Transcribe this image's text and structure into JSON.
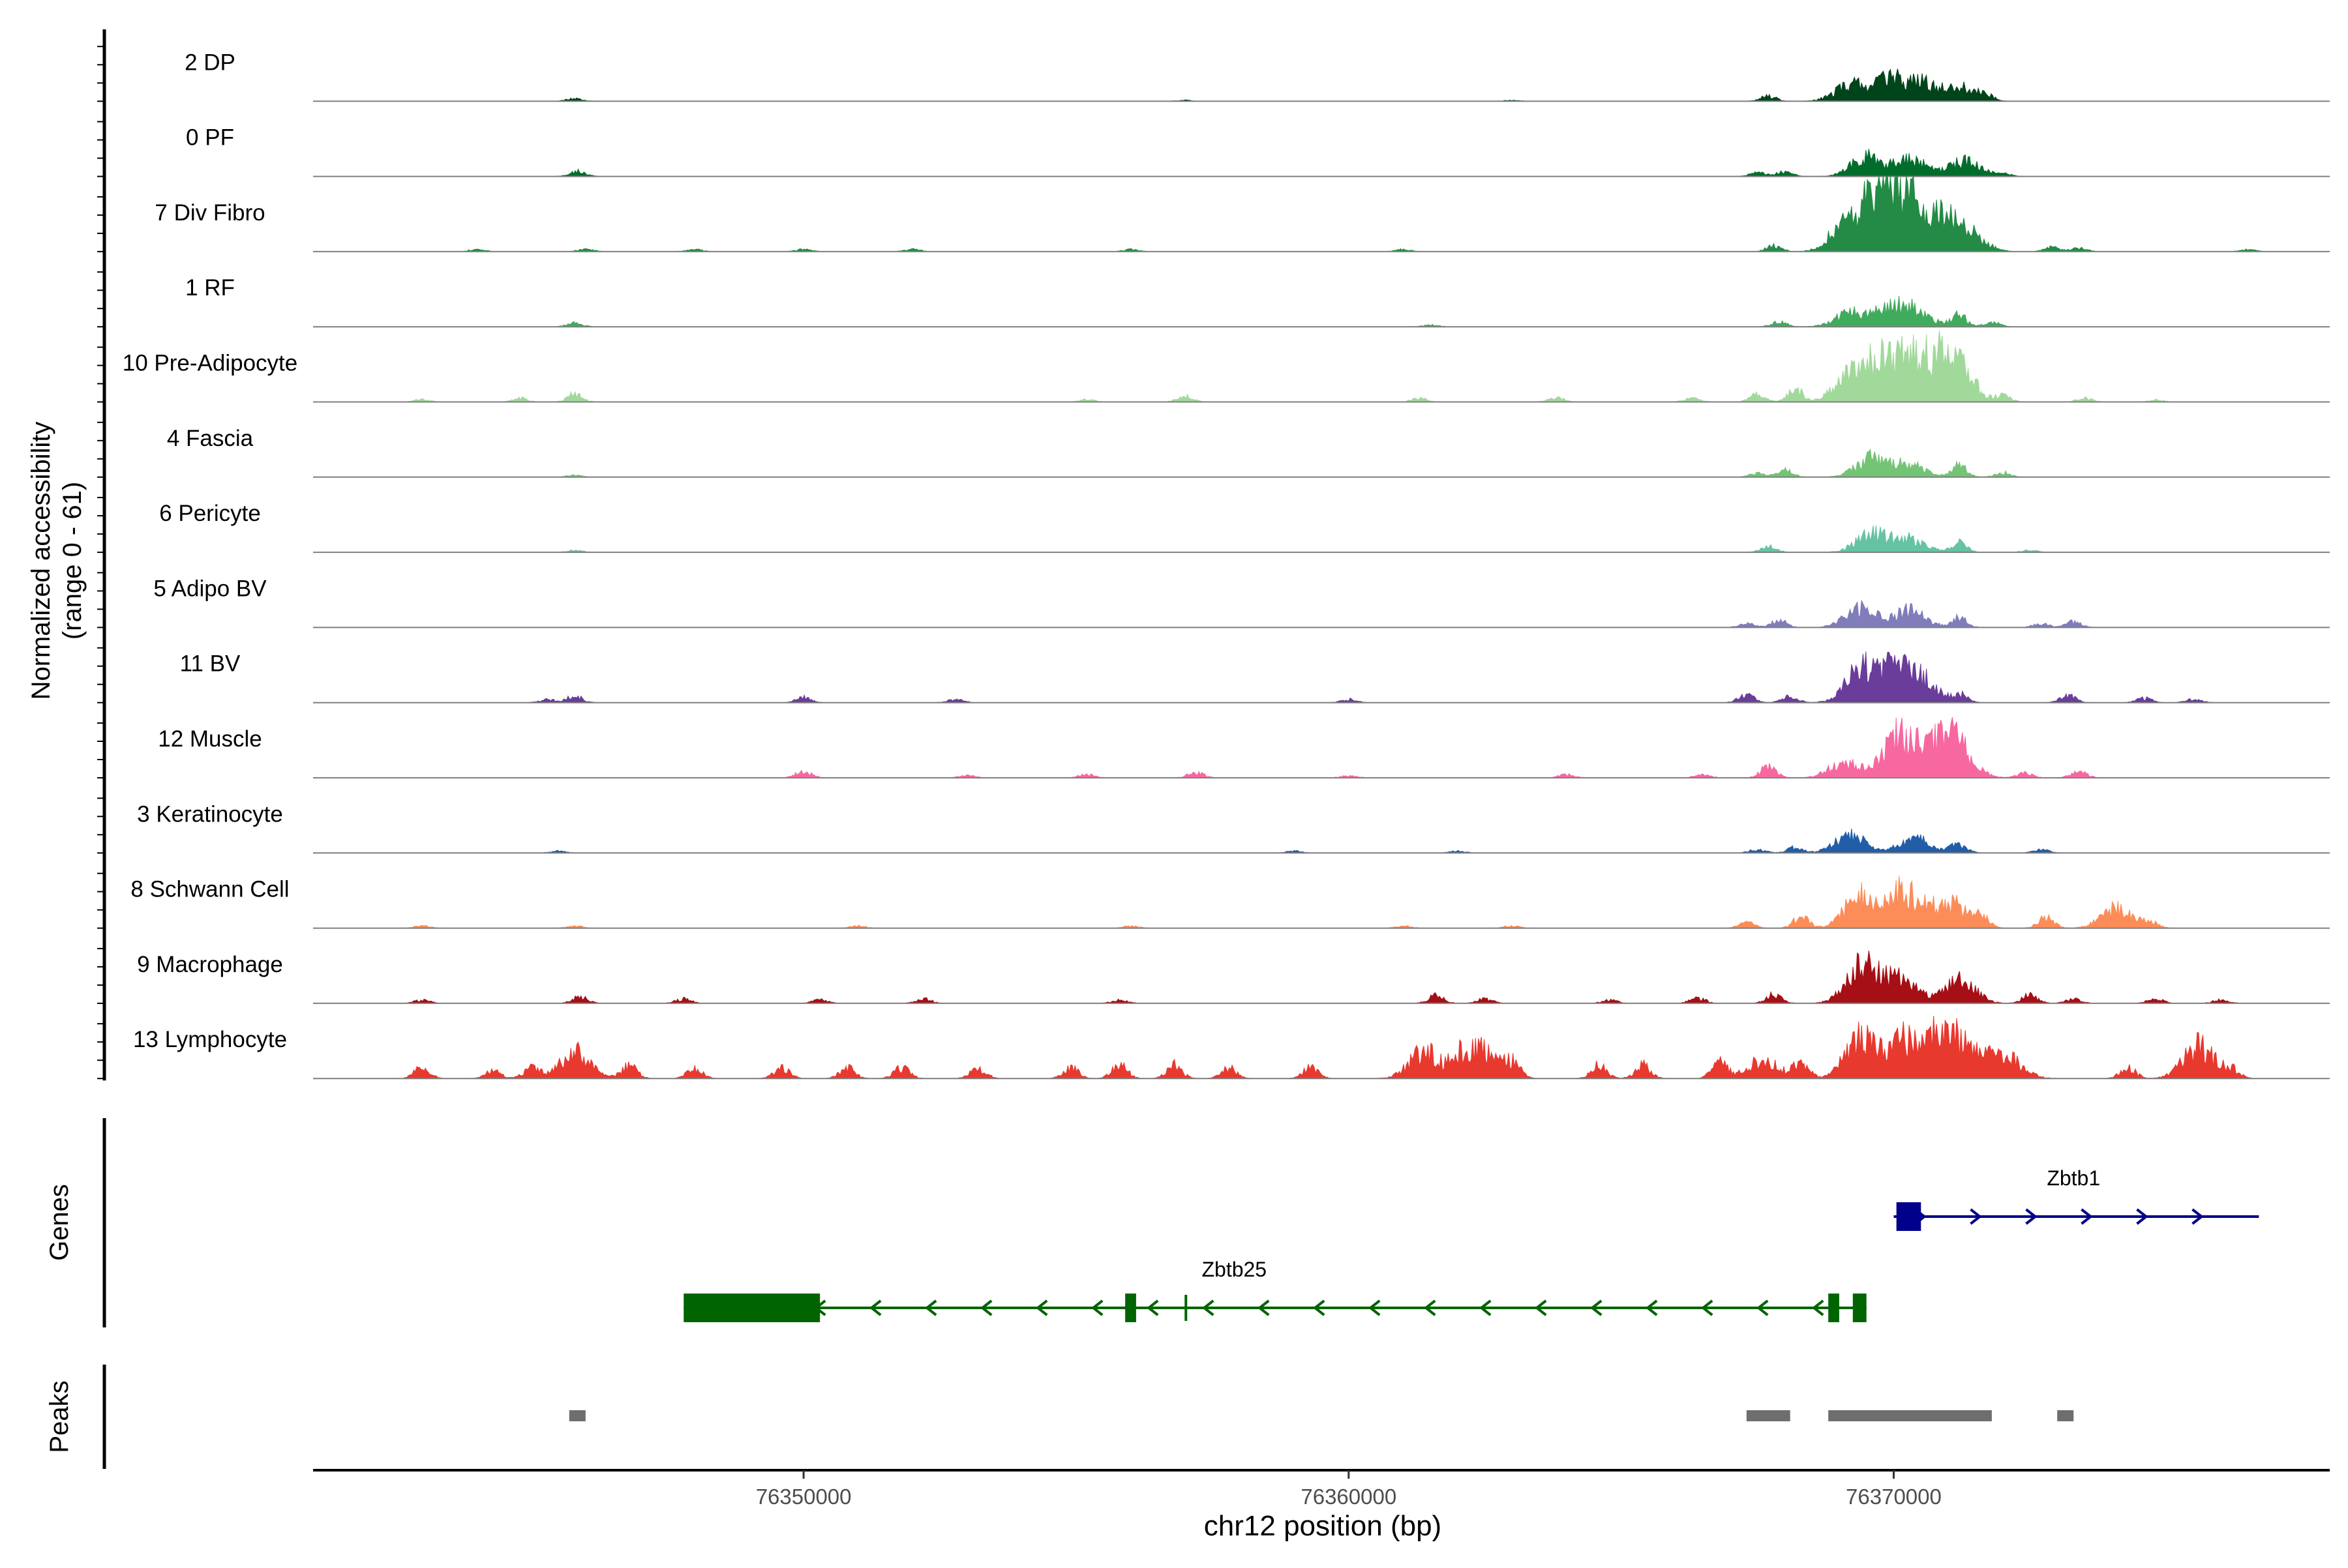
{
  "chart_data": {
    "type": "area",
    "title": "",
    "chromosome": "chr12",
    "xlabel": "chr12 position (bp)",
    "ylabel_line1": "Normalized accessibility",
    "ylabel_line2": "(range 0 - 61)",
    "yrange": [
      0,
      61
    ],
    "xlim": [
      76341000,
      76378000
    ],
    "x_ticks": [
      76350000,
      76360000,
      76370000
    ],
    "x_tick_labels": [
      "76350000",
      "76360000",
      "76370000"
    ],
    "tracks": [
      {
        "name": "2 DP",
        "color": "#00441b",
        "scale": 0.85,
        "peaks": [
          [
            76345800,
            3
          ],
          [
            76357000,
            1
          ],
          [
            76363000,
            1
          ],
          [
            76367700,
            6
          ],
          [
            76369200,
            17
          ],
          [
            76369900,
            22
          ],
          [
            76370500,
            18
          ],
          [
            76371200,
            15
          ],
          [
            76371700,
            5
          ]
        ]
      },
      {
        "name": "0 PF",
        "color": "#006d2c",
        "scale": 0.85,
        "peaks": [
          [
            76345850,
            6
          ],
          [
            76367500,
            4
          ],
          [
            76368000,
            5
          ],
          [
            76369500,
            20
          ],
          [
            76370300,
            18
          ],
          [
            76371300,
            16
          ],
          [
            76372000,
            3
          ]
        ]
      },
      {
        "name": "7 Div Fibro",
        "color": "#238b45",
        "scale": 1.0,
        "peaks": [
          [
            76344000,
            2
          ],
          [
            76346000,
            2
          ],
          [
            76348000,
            2
          ],
          [
            76350000,
            2
          ],
          [
            76352000,
            2
          ],
          [
            76356000,
            2
          ],
          [
            76361000,
            2
          ],
          [
            76367800,
            5
          ],
          [
            76369100,
            22
          ],
          [
            76369600,
            34
          ],
          [
            76369900,
            28
          ],
          [
            76370300,
            42
          ],
          [
            76370900,
            26
          ],
          [
            76371400,
            14
          ],
          [
            76372900,
            4
          ],
          [
            76373400,
            3
          ],
          [
            76376500,
            2
          ]
        ]
      },
      {
        "name": "1 RF",
        "color": "#41ab5d",
        "scale": 0.85,
        "peaks": [
          [
            76345800,
            4
          ],
          [
            76361500,
            2
          ],
          [
            76367900,
            5
          ],
          [
            76369200,
            14
          ],
          [
            76369900,
            18
          ],
          [
            76370400,
            16
          ],
          [
            76371200,
            12
          ],
          [
            76371800,
            5
          ]
        ]
      },
      {
        "name": "10 Pre-Adipocyte",
        "color": "#a1d99b",
        "scale": 1.05,
        "peaks": [
          [
            76343000,
            2
          ],
          [
            76344800,
            3
          ],
          [
            76345800,
            7
          ],
          [
            76355200,
            2
          ],
          [
            76357000,
            5
          ],
          [
            76361300,
            3
          ],
          [
            76363800,
            4
          ],
          [
            76366300,
            3
          ],
          [
            76367500,
            6
          ],
          [
            76368200,
            10
          ],
          [
            76369200,
            22
          ],
          [
            76369700,
            30
          ],
          [
            76370300,
            40
          ],
          [
            76370900,
            28
          ],
          [
            76371200,
            24
          ],
          [
            76372000,
            5
          ],
          [
            76373500,
            3
          ],
          [
            76374800,
            2
          ]
        ]
      },
      {
        "name": "4 Fascia",
        "color": "#74c476",
        "scale": 0.85,
        "peaks": [
          [
            76345800,
            2
          ],
          [
            76367500,
            4
          ],
          [
            76368000,
            8
          ],
          [
            76369600,
            20
          ],
          [
            76370300,
            14
          ],
          [
            76371200,
            12
          ],
          [
            76372000,
            5
          ]
        ]
      },
      {
        "name": "6 Pericyte",
        "color": "#66c2a4",
        "scale": 0.85,
        "peaks": [
          [
            76345800,
            2
          ],
          [
            76367700,
            6
          ],
          [
            76369600,
            20
          ],
          [
            76370300,
            14
          ],
          [
            76371200,
            10
          ],
          [
            76372500,
            2
          ]
        ]
      },
      {
        "name": "5 Adipo BV",
        "color": "#807dba",
        "scale": 0.85,
        "peaks": [
          [
            76367300,
            4
          ],
          [
            76367900,
            8
          ],
          [
            76369400,
            20
          ],
          [
            76370300,
            18
          ],
          [
            76371200,
            10
          ],
          [
            76372700,
            4
          ],
          [
            76373300,
            6
          ]
        ]
      },
      {
        "name": "11 BV",
        "color": "#6a3d9a",
        "scale": 1.0,
        "peaks": [
          [
            76345300,
            3
          ],
          [
            76345800,
            6
          ],
          [
            76350000,
            5
          ],
          [
            76352800,
            3
          ],
          [
            76360000,
            3
          ],
          [
            76367300,
            7
          ],
          [
            76368100,
            6
          ],
          [
            76369400,
            30
          ],
          [
            76370000,
            26
          ],
          [
            76370500,
            20
          ],
          [
            76371200,
            8
          ],
          [
            76373200,
            7
          ],
          [
            76374600,
            4
          ],
          [
            76375500,
            3
          ]
        ]
      },
      {
        "name": "12 Muscle",
        "color": "#f768a1",
        "scale": 1.0,
        "peaks": [
          [
            76350000,
            6
          ],
          [
            76353000,
            2
          ],
          [
            76355200,
            3
          ],
          [
            76357200,
            5
          ],
          [
            76360000,
            2
          ],
          [
            76364000,
            3
          ],
          [
            76366500,
            3
          ],
          [
            76367700,
            10
          ],
          [
            76369100,
            14
          ],
          [
            76370100,
            38
          ],
          [
            76370800,
            30
          ],
          [
            76371200,
            22
          ],
          [
            76372400,
            4
          ],
          [
            76373400,
            6
          ]
        ]
      },
      {
        "name": "3 Keratinocyte",
        "color": "#225ea8",
        "scale": 0.85,
        "peaks": [
          [
            76345500,
            2
          ],
          [
            76359000,
            2
          ],
          [
            76362000,
            2
          ],
          [
            76367500,
            4
          ],
          [
            76368200,
            6
          ],
          [
            76369200,
            18
          ],
          [
            76370400,
            16
          ],
          [
            76371200,
            10
          ],
          [
            76372700,
            4
          ]
        ]
      },
      {
        "name": "8 Schwann Cell",
        "color": "#fc8d59",
        "scale": 1.0,
        "peaks": [
          [
            76343000,
            2
          ],
          [
            76345800,
            2
          ],
          [
            76351000,
            2
          ],
          [
            76356000,
            2
          ],
          [
            76361000,
            2
          ],
          [
            76363000,
            2
          ],
          [
            76367300,
            5
          ],
          [
            76368300,
            10
          ],
          [
            76369400,
            30
          ],
          [
            76370200,
            34
          ],
          [
            76371000,
            24
          ],
          [
            76371600,
            12
          ],
          [
            76372800,
            10
          ],
          [
            76374100,
            18
          ],
          [
            76374700,
            5
          ]
        ]
      },
      {
        "name": "9 Macrophage",
        "color": "#a50f15",
        "scale": 1.0,
        "peaks": [
          [
            76343000,
            3
          ],
          [
            76345900,
            6
          ],
          [
            76347800,
            4
          ],
          [
            76350300,
            3
          ],
          [
            76352200,
            4
          ],
          [
            76355800,
            3
          ],
          [
            76361600,
            7
          ],
          [
            76362500,
            4
          ],
          [
            76364800,
            3
          ],
          [
            76366400,
            5
          ],
          [
            76367800,
            8
          ],
          [
            76369400,
            34
          ],
          [
            76370100,
            26
          ],
          [
            76371200,
            22
          ],
          [
            76372500,
            8
          ],
          [
            76373300,
            4
          ],
          [
            76374800,
            4
          ],
          [
            76376000,
            3
          ]
        ]
      },
      {
        "name": "13 Lymphocyte",
        "color": "#e8392f",
        "scale": 1.2,
        "peaks": [
          [
            76343000,
            8
          ],
          [
            76344300,
            6
          ],
          [
            76345000,
            8
          ],
          [
            76345800,
            20
          ],
          [
            76346800,
            10
          ],
          [
            76348000,
            8
          ],
          [
            76349600,
            8
          ],
          [
            76350800,
            8
          ],
          [
            76351800,
            8
          ],
          [
            76353200,
            8
          ],
          [
            76354900,
            8
          ],
          [
            76355800,
            10
          ],
          [
            76356800,
            10
          ],
          [
            76357800,
            8
          ],
          [
            76359300,
            8
          ],
          [
            76361400,
            20
          ],
          [
            76362000,
            10
          ],
          [
            76362400,
            22
          ],
          [
            76363000,
            12
          ],
          [
            76364600,
            10
          ],
          [
            76365400,
            10
          ],
          [
            76366800,
            12
          ],
          [
            76367600,
            14
          ],
          [
            76368300,
            12
          ],
          [
            76369400,
            30
          ],
          [
            76370200,
            28
          ],
          [
            76370900,
            36
          ],
          [
            76371500,
            16
          ],
          [
            76372100,
            14
          ],
          [
            76374300,
            8
          ],
          [
            76375600,
            24
          ],
          [
            76376200,
            6
          ]
        ]
      }
    ],
    "genes": [
      {
        "name": "Zbtb1",
        "strand": "+",
        "color": "#00008b",
        "start": 76370000,
        "end": 76376700,
        "label_pos": 76373300,
        "exons": [
          [
            76370050,
            76370500
          ]
        ]
      },
      {
        "name": "Zbtb25",
        "strand": "-",
        "color": "#006400",
        "start": 76347800,
        "end": 76369500,
        "label_pos": 76357900,
        "exons": [
          [
            76347800,
            76350300
          ],
          [
            76355900,
            76356100
          ],
          [
            76356990,
            76357010
          ],
          [
            76368800,
            76369000
          ],
          [
            76369250,
            76369500
          ]
        ]
      }
    ],
    "peaks_track": [
      [
        76345700,
        76346000
      ],
      [
        76367300,
        76368100
      ],
      [
        76368800,
        76371800
      ],
      [
        76373000,
        76373300
      ]
    ],
    "panel_labels": {
      "genes": "Genes",
      "peaks": "Peaks"
    }
  },
  "colors": {
    "axis": "#000000",
    "baseline": "#7f7f7f",
    "peaks_bar": "#6e6e6e"
  }
}
